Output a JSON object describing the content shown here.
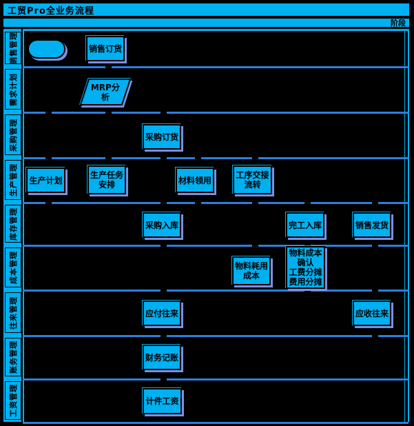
{
  "title": "工贸Pro全业务流程",
  "phase_header": "阶段",
  "colors": {
    "shape_fill": "#00b0f0",
    "background": "#000000",
    "lane_line": "#2b7fdd",
    "frame_line": "#00b0f0",
    "shadow": "#7e8fe0",
    "text": "#000000"
  },
  "lanes": [
    {
      "id": "sales",
      "label": "销售管理"
    },
    {
      "id": "demand",
      "label": "需求计划"
    },
    {
      "id": "purchase",
      "label": "采购管理"
    },
    {
      "id": "production",
      "label": "生产管理"
    },
    {
      "id": "inventory",
      "label": "库存管理"
    },
    {
      "id": "cost",
      "label": "成本管理"
    },
    {
      "id": "contacts",
      "label": "往来管理"
    },
    {
      "id": "accounting",
      "label": "账务管理"
    },
    {
      "id": "payroll",
      "label": "工资管理"
    }
  ],
  "nodes": [
    {
      "id": "start",
      "shape": "pill",
      "lane": "sales",
      "lines": []
    },
    {
      "id": "sales-order",
      "shape": "rect",
      "lane": "sales",
      "lines": [
        "销售订货"
      ]
    },
    {
      "id": "mrp-analysis",
      "shape": "para",
      "lane": "demand",
      "lines": [
        "MRP分",
        "析"
      ]
    },
    {
      "id": "purchase-order",
      "shape": "rect",
      "lane": "purchase",
      "lines": [
        "采购订货"
      ]
    },
    {
      "id": "production-plan",
      "shape": "rect",
      "lane": "production",
      "lines": [
        "生产计划"
      ]
    },
    {
      "id": "production-task",
      "shape": "rect",
      "lane": "production",
      "lines": [
        "生产任务",
        "安排"
      ]
    },
    {
      "id": "material-requisition",
      "shape": "rect",
      "lane": "production",
      "lines": [
        "材料领用"
      ]
    },
    {
      "id": "process-handover",
      "shape": "rect",
      "lane": "production",
      "lines": [
        "工序交接",
        "流转"
      ]
    },
    {
      "id": "purchase-receipt",
      "shape": "rect",
      "lane": "inventory",
      "lines": [
        "采购入库"
      ]
    },
    {
      "id": "finished-receipt",
      "shape": "rect",
      "lane": "inventory",
      "lines": [
        "完工入库"
      ]
    },
    {
      "id": "sales-delivery",
      "shape": "rect",
      "lane": "inventory",
      "lines": [
        "销售发货"
      ]
    },
    {
      "id": "material-cost",
      "shape": "rect",
      "lane": "cost",
      "lines": [
        "物料耗用",
        "成本"
      ]
    },
    {
      "id": "cost-confirmation",
      "shape": "rect",
      "lane": "cost",
      "lines": [
        "物料成本",
        "确认",
        "工费分摊",
        "费用分摊"
      ]
    },
    {
      "id": "payable",
      "shape": "rect",
      "lane": "contacts",
      "lines": [
        "应付往来"
      ]
    },
    {
      "id": "receivable",
      "shape": "rect",
      "lane": "contacts",
      "lines": [
        "应收往来"
      ]
    },
    {
      "id": "bookkeeping",
      "shape": "rect",
      "lane": "accounting",
      "lines": [
        "财务记账"
      ]
    },
    {
      "id": "piece-wage",
      "shape": "rect",
      "lane": "payroll",
      "lines": [
        "计件工资"
      ]
    }
  ]
}
